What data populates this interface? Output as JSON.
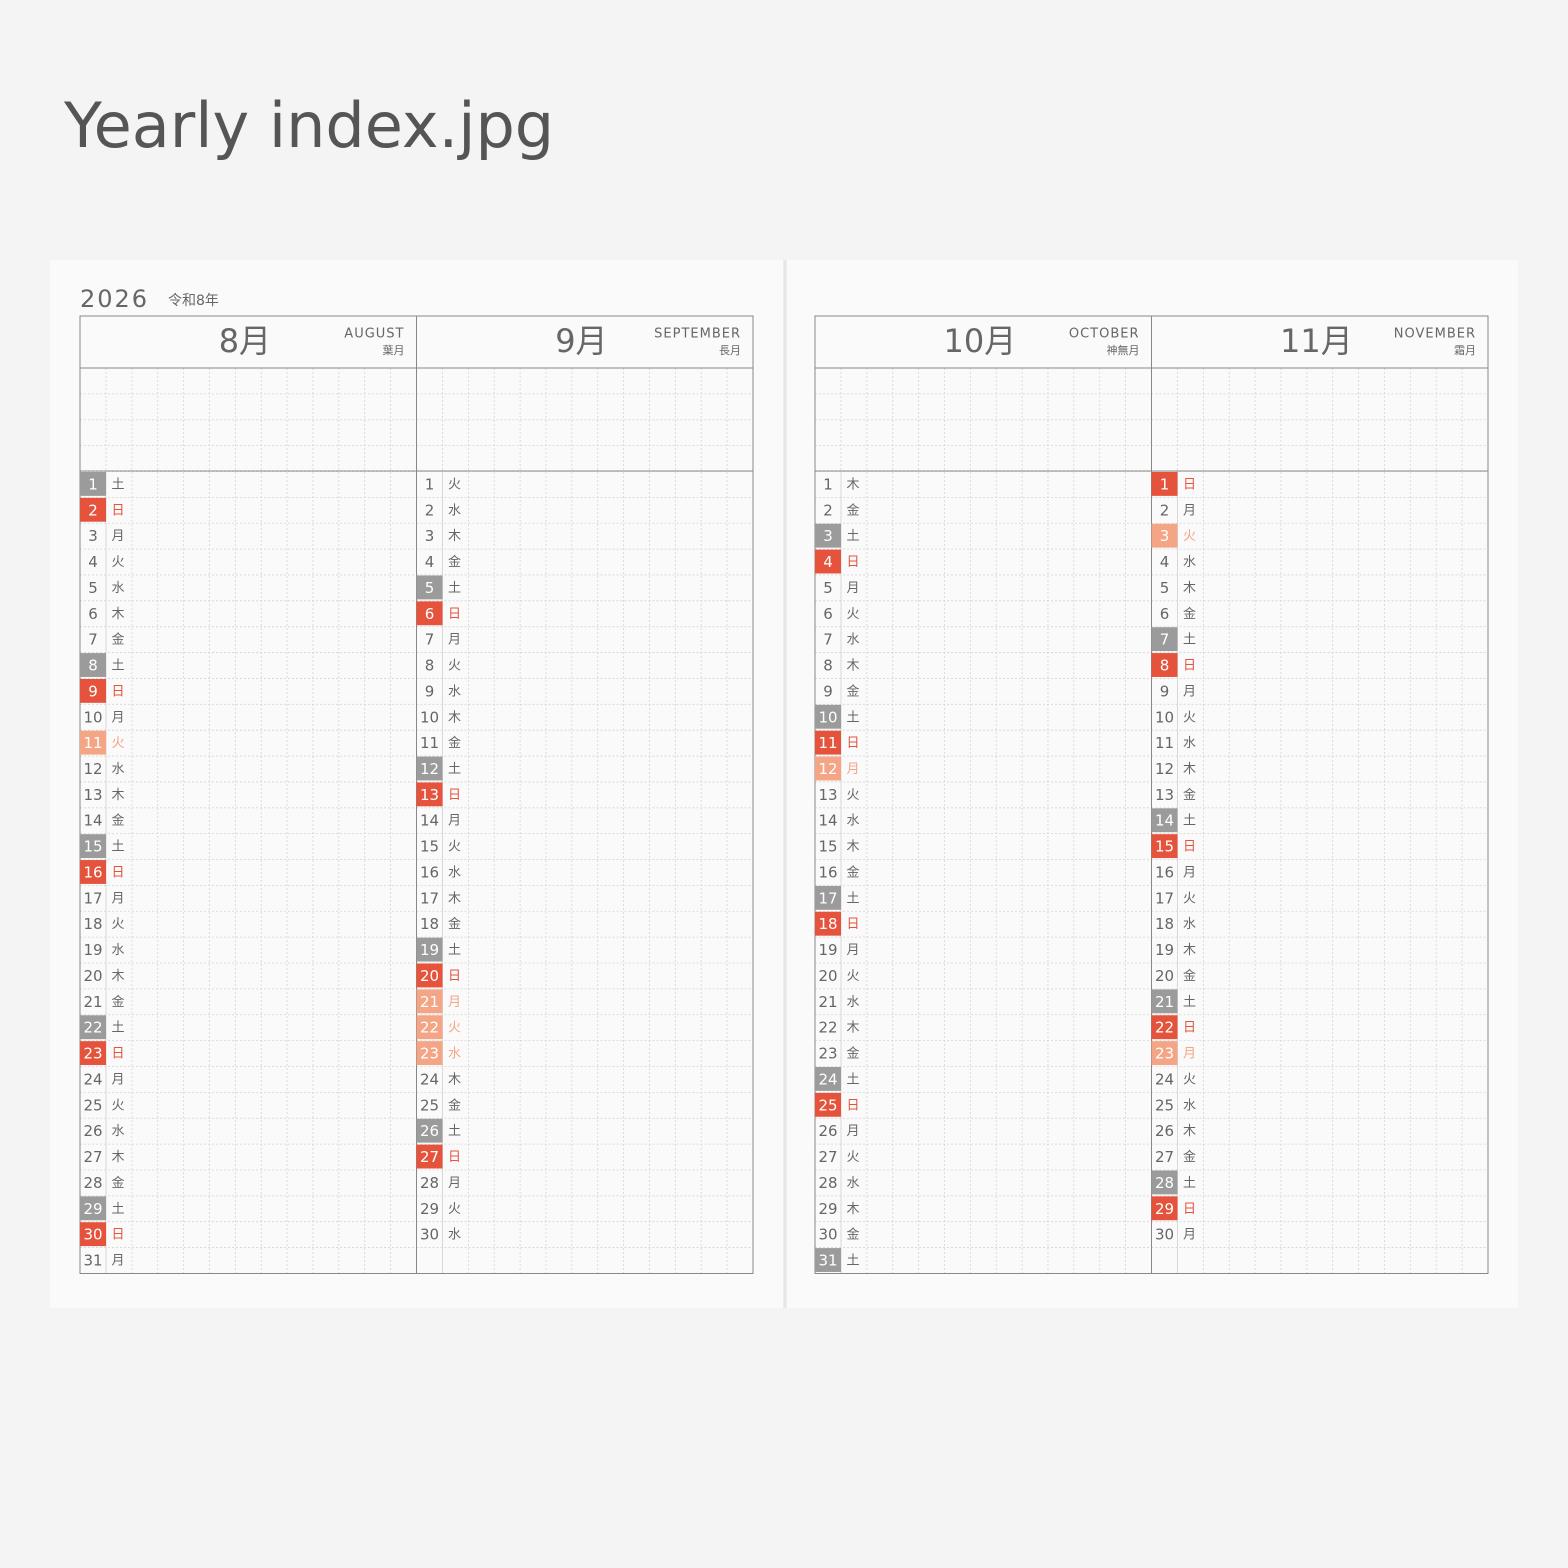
{
  "header": {
    "title": "Yearly index.jpg"
  },
  "planner": {
    "year": "2026",
    "era": "令和8年",
    "months": [
      {
        "label": "8月",
        "name": "AUGUST",
        "old_name": "葉月",
        "days": [
          1,
          2,
          3,
          4,
          5,
          6,
          7,
          8,
          9,
          10,
          11,
          12,
          13,
          14,
          15,
          16,
          17,
          18,
          19,
          20,
          21,
          22,
          23,
          24,
          25,
          26,
          27,
          28,
          29,
          30,
          31
        ],
        "weekdays": [
          "土",
          "日",
          "月",
          "火",
          "水",
          "木",
          "金",
          "土",
          "日",
          "月",
          "火",
          "水",
          "木",
          "金",
          "土",
          "日",
          "月",
          "火",
          "水",
          "木",
          "金",
          "土",
          "日",
          "月",
          "火",
          "水",
          "木",
          "金",
          "土",
          "日",
          "月"
        ],
        "colors": [
          "#9b9b9b",
          "#e5533d",
          null,
          null,
          null,
          null,
          null,
          "#9b9b9b",
          "#e5533d",
          null,
          "#f4a585",
          null,
          null,
          null,
          "#9b9b9b",
          "#e5533d",
          null,
          null,
          null,
          null,
          null,
          "#9b9b9b",
          "#e5533d",
          null,
          null,
          null,
          null,
          null,
          "#9b9b9b",
          "#e5533d",
          null
        ]
      },
      {
        "label": "9月",
        "name": "SEPTEMBER",
        "old_name": "長月",
        "days": [
          1,
          2,
          3,
          4,
          5,
          6,
          7,
          8,
          9,
          10,
          11,
          12,
          13,
          14,
          15,
          16,
          17,
          18,
          19,
          20,
          21,
          22,
          23,
          24,
          25,
          26,
          27,
          28,
          29,
          30
        ],
        "weekdays": [
          "火",
          "水",
          "木",
          "金",
          "土",
          "日",
          "月",
          "火",
          "水",
          "木",
          "金",
          "土",
          "日",
          "月",
          "火",
          "水",
          "木",
          "金",
          "土",
          "日",
          "月",
          "火",
          "水",
          "木",
          "金",
          "土",
          "日",
          "月",
          "火",
          "水"
        ],
        "colors": [
          null,
          null,
          null,
          null,
          "#9b9b9b",
          "#e5533d",
          null,
          null,
          null,
          null,
          null,
          "#9b9b9b",
          "#e5533d",
          null,
          null,
          null,
          null,
          null,
          "#9b9b9b",
          "#e5533d",
          "#f4a585",
          "#f4a585",
          "#f4a585",
          null,
          null,
          "#9b9b9b",
          "#e5533d",
          null,
          null,
          null
        ]
      },
      {
        "label": "10月",
        "name": "OCTOBER",
        "old_name": "神無月",
        "days": [
          1,
          2,
          3,
          4,
          5,
          6,
          7,
          8,
          9,
          10,
          11,
          12,
          13,
          14,
          15,
          16,
          17,
          18,
          19,
          20,
          21,
          22,
          23,
          24,
          25,
          26,
          27,
          28,
          29,
          30,
          31
        ],
        "weekdays": [
          "木",
          "金",
          "土",
          "日",
          "月",
          "火",
          "水",
          "木",
          "金",
          "土",
          "日",
          "月",
          "火",
          "水",
          "木",
          "金",
          "土",
          "日",
          "月",
          "火",
          "水",
          "木",
          "金",
          "土",
          "日",
          "月",
          "火",
          "水",
          "木",
          "金",
          "土"
        ],
        "colors": [
          null,
          null,
          "#9b9b9b",
          "#e5533d",
          null,
          null,
          null,
          null,
          null,
          "#9b9b9b",
          "#e5533d",
          "#f4a585",
          null,
          null,
          null,
          null,
          "#9b9b9b",
          "#e5533d",
          null,
          null,
          null,
          null,
          null,
          "#9b9b9b",
          "#e5533d",
          null,
          null,
          null,
          null,
          null,
          "#9b9b9b"
        ]
      },
      {
        "label": "11月",
        "name": "NOVEMBER",
        "old_name": "霜月",
        "days": [
          1,
          2,
          3,
          4,
          5,
          6,
          7,
          8,
          9,
          10,
          11,
          12,
          13,
          14,
          15,
          16,
          17,
          18,
          19,
          20,
          21,
          22,
          23,
          24,
          25,
          26,
          27,
          28,
          29,
          30
        ],
        "weekdays": [
          "日",
          "月",
          "火",
          "水",
          "木",
          "金",
          "土",
          "日",
          "月",
          "火",
          "水",
          "木",
          "金",
          "土",
          "日",
          "月",
          "火",
          "水",
          "木",
          "金",
          "土",
          "日",
          "月",
          "火",
          "水",
          "木",
          "金",
          "土",
          "日",
          "月"
        ],
        "colors": [
          "#e5533d",
          null,
          "#f4a585",
          null,
          null,
          null,
          "#9b9b9b",
          "#e5533d",
          null,
          null,
          null,
          null,
          null,
          "#9b9b9b",
          "#e5533d",
          null,
          null,
          null,
          null,
          null,
          "#9b9b9b",
          "#e5533d",
          "#f4a585",
          null,
          null,
          null,
          null,
          "#9b9b9b",
          "#e5533d",
          null
        ]
      }
    ]
  }
}
